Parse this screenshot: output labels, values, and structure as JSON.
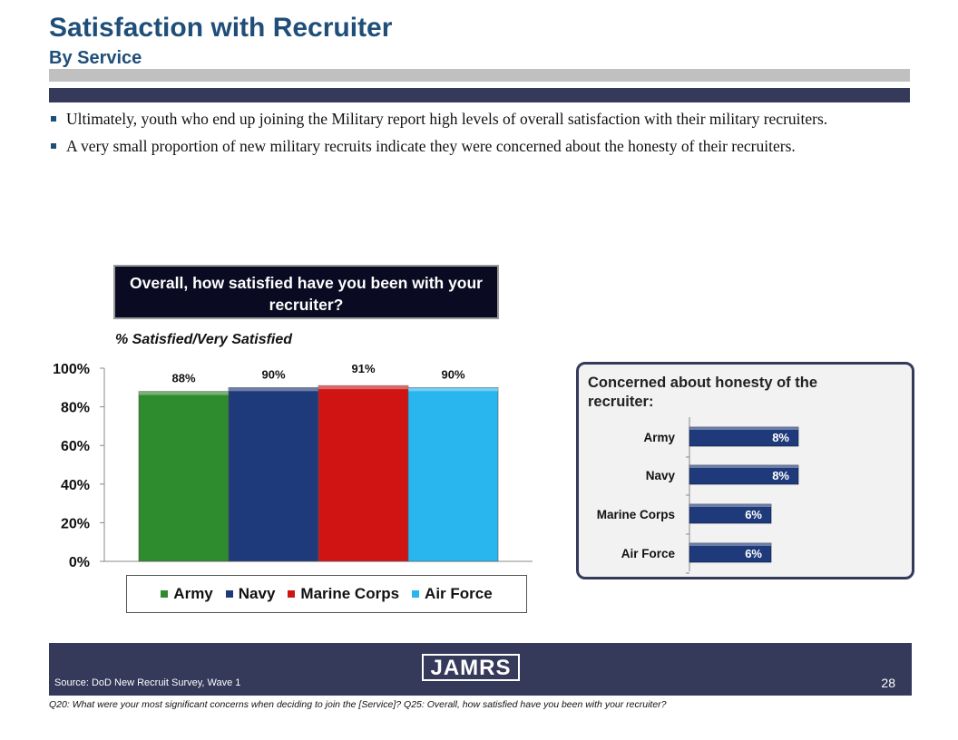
{
  "title": "Satisfaction with Recruiter",
  "subtitle": "By Service",
  "bullets": [
    "Ultimately, youth who end up joining the Military report high levels of overall satisfaction with their military recruiters.",
    "A very small proportion of new military recruits indicate they were concerned about the honesty of their recruiters."
  ],
  "question": "Overall, how satisfied have you been with your recruiter?",
  "metric_label": "% Satisfied/Very Satisfied",
  "footer": {
    "source": "Source:  DoD New Recruit Survey, Wave 1",
    "logo": "JAMRS",
    "page_number": "28"
  },
  "footnote": "Q20:  What were your most significant concerns when deciding to join the [Service]? Q25:  Overall, how satisfied have you been with your recruiter?",
  "chart_data": [
    {
      "type": "bar",
      "categories": [
        "Army",
        "Navy",
        "Marine Corps",
        "Air Force"
      ],
      "values": [
        88,
        90,
        91,
        90
      ],
      "data_labels": [
        "88%",
        "90%",
        "91%",
        "90%"
      ],
      "ylim": [
        0,
        100
      ],
      "yticks": [
        "0%",
        "20%",
        "40%",
        "60%",
        "80%",
        "100%"
      ],
      "colors": [
        "#2e8b2e",
        "#1f3a7a",
        "#d01414",
        "#29b6ee"
      ],
      "legend": [
        "Army",
        "Navy",
        "Marine Corps",
        "Air Force"
      ],
      "legend_position": "bottom"
    },
    {
      "type": "bar",
      "orientation": "horizontal",
      "title": "Concerned about honesty of the recruiter:",
      "categories": [
        "Army",
        "Navy",
        "Marine Corps",
        "Air Force"
      ],
      "values": [
        8,
        8,
        6,
        6
      ],
      "data_labels": [
        "8%",
        "8%",
        "6%",
        "6%"
      ],
      "color": "#1f3a7a"
    }
  ]
}
